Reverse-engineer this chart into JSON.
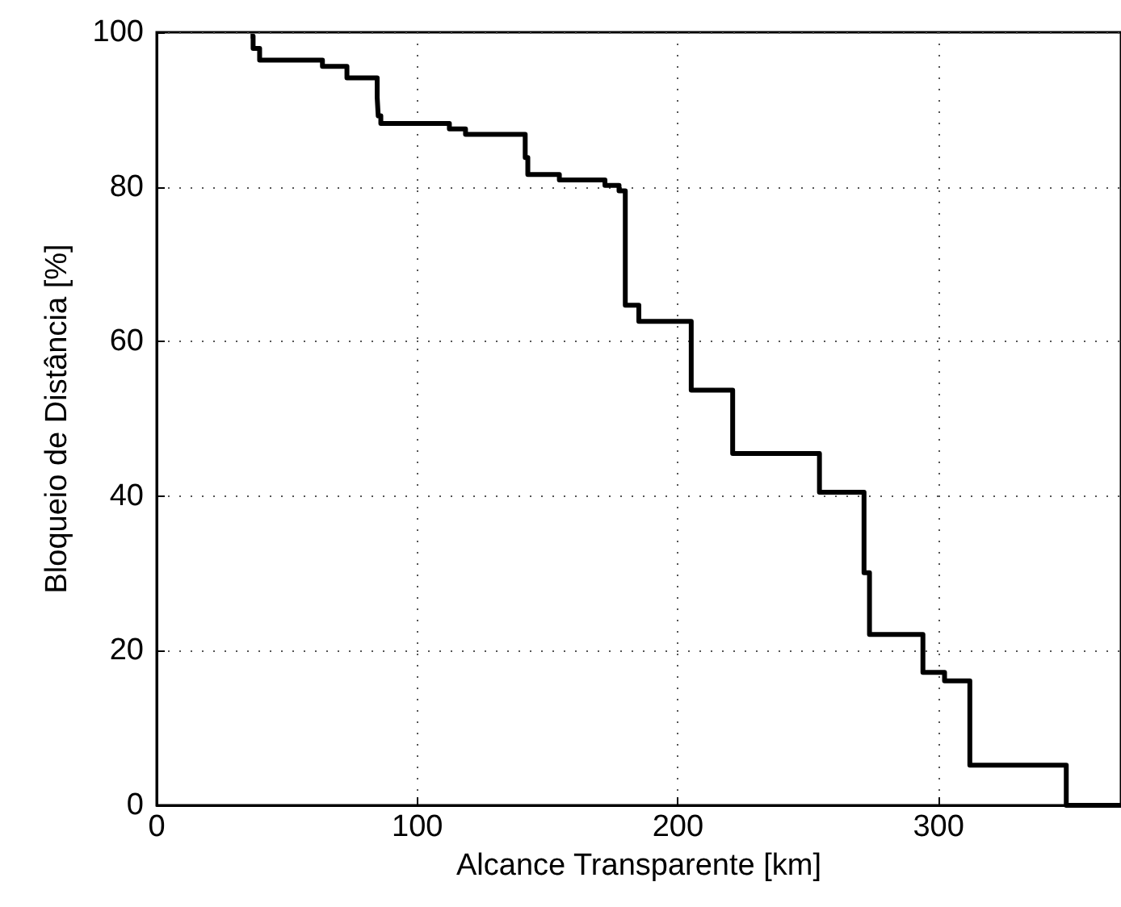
{
  "chart_data": {
    "type": "step",
    "xlabel": "Alcance Transparente [km]",
    "ylabel": "Bloqueio de Distância [%]",
    "x": [
      36,
      37,
      39.5,
      63.6,
      73,
      84.6,
      85,
      86,
      112.3,
      118.5,
      141.4,
      142.4,
      154.5,
      172,
      177.4,
      179.8,
      185,
      205.1,
      221,
      254.3,
      271.4,
      273.5,
      294,
      302.3,
      312,
      349,
      370
    ],
    "series": [
      {
        "color": "#000000",
        "values": [
          99.5,
          97.9,
          96.4,
          95.6,
          94.1,
          91.6,
          89.2,
          88.2,
          87.5,
          86.8,
          83.8,
          81.6,
          80.9,
          80.2,
          79.5,
          64.7,
          62.6,
          53.7,
          45.5,
          40.5,
          30.1,
          22.1,
          17.2,
          16.1,
          5.2,
          0,
          0
        ]
      }
    ],
    "xlim": [
      0,
      370
    ],
    "xticks": [
      0,
      100,
      200,
      300
    ],
    "ylim": [
      0,
      100
    ],
    "yticks": [
      0,
      20,
      40,
      60,
      80,
      100
    ],
    "grid": true,
    "marker": "none",
    "line_style": "solid"
  }
}
